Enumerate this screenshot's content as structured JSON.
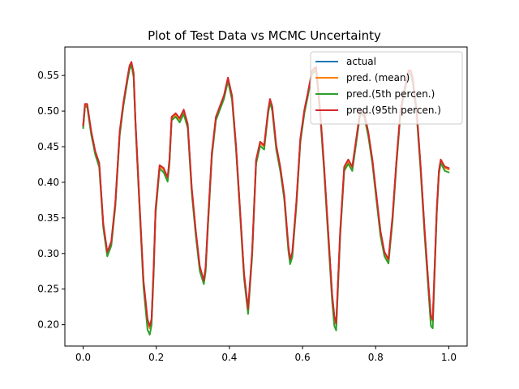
{
  "chart_data": {
    "type": "line",
    "title": "Plot of Test Data vs MCMC Uncertainty",
    "xlabel": "",
    "ylabel": "",
    "xlim": [
      -0.05,
      1.05
    ],
    "ylim": [
      0.17,
      0.59
    ],
    "grid": false,
    "legend_position": "top-right",
    "x_ticks": [
      0.0,
      0.2,
      0.4,
      0.6,
      0.8,
      1.0
    ],
    "x_tick_labels": [
      "0.0",
      "0.2",
      "0.4",
      "0.6",
      "0.8",
      "1.0"
    ],
    "y_ticks": [
      0.2,
      0.25,
      0.3,
      0.35,
      0.4,
      0.45,
      0.5,
      0.55
    ],
    "y_tick_labels": [
      "0.20",
      "0.25",
      "0.30",
      "0.35",
      "0.40",
      "0.45",
      "0.50",
      "0.55"
    ],
    "x": [
      0.0,
      0.005,
      0.011,
      0.022,
      0.033,
      0.044,
      0.055,
      0.066,
      0.077,
      0.088,
      0.1,
      0.11,
      0.121,
      0.127,
      0.132,
      0.138,
      0.143,
      0.154,
      0.165,
      0.176,
      0.182,
      0.187,
      0.193,
      0.198,
      0.209,
      0.22,
      0.231,
      0.236,
      0.242,
      0.253,
      0.264,
      0.275,
      0.286,
      0.297,
      0.308,
      0.319,
      0.33,
      0.335,
      0.341,
      0.352,
      0.363,
      0.374,
      0.385,
      0.396,
      0.407,
      0.418,
      0.429,
      0.44,
      0.451,
      0.462,
      0.473,
      0.484,
      0.495,
      0.506,
      0.511,
      0.517,
      0.528,
      0.539,
      0.55,
      0.561,
      0.566,
      0.572,
      0.583,
      0.594,
      0.605,
      0.615,
      0.626,
      0.637,
      0.648,
      0.659,
      0.67,
      0.681,
      0.687,
      0.692,
      0.703,
      0.714,
      0.725,
      0.736,
      0.747,
      0.758,
      0.769,
      0.78,
      0.791,
      0.802,
      0.813,
      0.824,
      0.835,
      0.846,
      0.857,
      0.868,
      0.879,
      0.89,
      0.896,
      0.901,
      0.912,
      0.923,
      0.934,
      0.945,
      0.951,
      0.956,
      0.967,
      0.973,
      0.978,
      0.989,
      1.0
    ],
    "series": [
      {
        "name": "actual",
        "color": "#1f77b4",
        "values": [
          0.478,
          0.508,
          0.508,
          0.47,
          0.442,
          0.425,
          0.34,
          0.3,
          0.315,
          0.37,
          0.47,
          0.51,
          0.545,
          0.562,
          0.567,
          0.552,
          0.485,
          0.37,
          0.26,
          0.205,
          0.195,
          0.205,
          0.28,
          0.36,
          0.422,
          0.418,
          0.405,
          0.43,
          0.49,
          0.495,
          0.488,
          0.5,
          0.48,
          0.39,
          0.33,
          0.28,
          0.26,
          0.28,
          0.34,
          0.44,
          0.49,
          0.505,
          0.52,
          0.545,
          0.52,
          0.45,
          0.36,
          0.27,
          0.22,
          0.3,
          0.43,
          0.455,
          0.45,
          0.5,
          0.515,
          0.505,
          0.45,
          0.42,
          0.38,
          0.31,
          0.29,
          0.3,
          0.37,
          0.46,
          0.5,
          0.525,
          0.555,
          0.56,
          0.5,
          0.42,
          0.33,
          0.24,
          0.21,
          0.2,
          0.33,
          0.42,
          0.43,
          0.42,
          0.46,
          0.5,
          0.495,
          0.468,
          0.43,
          0.38,
          0.33,
          0.3,
          0.29,
          0.35,
          0.43,
          0.5,
          0.53,
          0.555,
          0.555,
          0.545,
          0.5,
          0.42,
          0.33,
          0.25,
          0.21,
          0.205,
          0.36,
          0.415,
          0.43,
          0.42,
          0.418
        ]
      },
      {
        "name": "pred. (mean)",
        "color": "#ff7f0e",
        "values": [
          0.478,
          0.508,
          0.508,
          0.47,
          0.442,
          0.425,
          0.34,
          0.3,
          0.315,
          0.37,
          0.47,
          0.51,
          0.545,
          0.562,
          0.567,
          0.552,
          0.485,
          0.37,
          0.26,
          0.205,
          0.195,
          0.205,
          0.28,
          0.36,
          0.422,
          0.418,
          0.405,
          0.43,
          0.49,
          0.495,
          0.488,
          0.5,
          0.48,
          0.39,
          0.33,
          0.28,
          0.26,
          0.28,
          0.34,
          0.44,
          0.49,
          0.505,
          0.52,
          0.545,
          0.52,
          0.45,
          0.36,
          0.27,
          0.22,
          0.3,
          0.43,
          0.455,
          0.45,
          0.5,
          0.515,
          0.505,
          0.45,
          0.42,
          0.38,
          0.31,
          0.29,
          0.3,
          0.37,
          0.46,
          0.5,
          0.525,
          0.555,
          0.56,
          0.5,
          0.42,
          0.33,
          0.24,
          0.21,
          0.2,
          0.33,
          0.42,
          0.43,
          0.42,
          0.46,
          0.5,
          0.495,
          0.468,
          0.43,
          0.38,
          0.33,
          0.3,
          0.29,
          0.35,
          0.43,
          0.5,
          0.53,
          0.555,
          0.555,
          0.545,
          0.5,
          0.42,
          0.33,
          0.25,
          0.21,
          0.205,
          0.36,
          0.415,
          0.43,
          0.42,
          0.418
        ]
      },
      {
        "name": "pred.(5th percen.)",
        "color": "#2ca02c",
        "values": [
          0.476,
          0.506,
          0.506,
          0.467,
          0.439,
          0.421,
          0.336,
          0.296,
          0.311,
          0.366,
          0.466,
          0.507,
          0.542,
          0.559,
          0.564,
          0.548,
          0.481,
          0.365,
          0.253,
          0.193,
          0.186,
          0.199,
          0.274,
          0.355,
          0.419,
          0.414,
          0.401,
          0.426,
          0.487,
          0.492,
          0.484,
          0.496,
          0.476,
          0.385,
          0.325,
          0.275,
          0.257,
          0.275,
          0.335,
          0.436,
          0.487,
          0.502,
          0.517,
          0.542,
          0.516,
          0.446,
          0.356,
          0.265,
          0.215,
          0.295,
          0.426,
          0.451,
          0.446,
          0.497,
          0.512,
          0.501,
          0.446,
          0.416,
          0.376,
          0.305,
          0.285,
          0.295,
          0.366,
          0.456,
          0.497,
          0.522,
          0.552,
          0.557,
          0.496,
          0.415,
          0.323,
          0.232,
          0.198,
          0.192,
          0.325,
          0.416,
          0.426,
          0.416,
          0.456,
          0.497,
          0.492,
          0.464,
          0.426,
          0.375,
          0.325,
          0.296,
          0.286,
          0.345,
          0.426,
          0.497,
          0.527,
          0.552,
          0.552,
          0.541,
          0.495,
          0.415,
          0.324,
          0.242,
          0.198,
          0.195,
          0.355,
          0.412,
          0.427,
          0.416,
          0.414
        ]
      },
      {
        "name": "pred.(95th percen.)",
        "color": "#d62728",
        "values": [
          0.48,
          0.51,
          0.51,
          0.472,
          0.444,
          0.427,
          0.342,
          0.302,
          0.317,
          0.372,
          0.472,
          0.512,
          0.547,
          0.564,
          0.569,
          0.554,
          0.487,
          0.372,
          0.262,
          0.208,
          0.198,
          0.208,
          0.283,
          0.362,
          0.424,
          0.42,
          0.407,
          0.432,
          0.492,
          0.497,
          0.49,
          0.502,
          0.482,
          0.392,
          0.332,
          0.282,
          0.262,
          0.282,
          0.342,
          0.442,
          0.492,
          0.507,
          0.522,
          0.547,
          0.522,
          0.452,
          0.362,
          0.272,
          0.222,
          0.302,
          0.432,
          0.457,
          0.452,
          0.502,
          0.517,
          0.507,
          0.452,
          0.422,
          0.382,
          0.312,
          0.292,
          0.302,
          0.372,
          0.462,
          0.502,
          0.527,
          0.557,
          0.562,
          0.502,
          0.422,
          0.332,
          0.242,
          0.212,
          0.202,
          0.332,
          0.422,
          0.432,
          0.422,
          0.462,
          0.502,
          0.497,
          0.47,
          0.432,
          0.382,
          0.332,
          0.302,
          0.292,
          0.352,
          0.432,
          0.502,
          0.532,
          0.557,
          0.557,
          0.547,
          0.502,
          0.422,
          0.332,
          0.252,
          0.212,
          0.207,
          0.362,
          0.417,
          0.432,
          0.422,
          0.42
        ]
      }
    ]
  }
}
